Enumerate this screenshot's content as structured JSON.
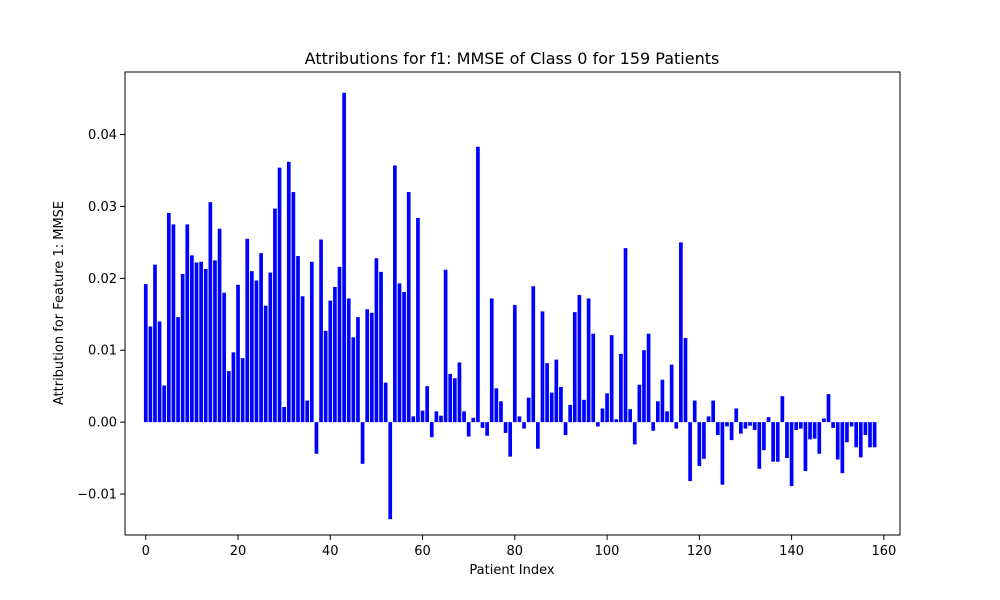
{
  "chart_data": {
    "type": "bar",
    "title": "Attributions for f1: MMSE of Class 0 for 159 Patients",
    "xlabel": "Patient Index",
    "ylabel": "Attribution for Feature 1: MMSE",
    "xlim": [
      -4.5,
      163.5
    ],
    "ylim": [
      -0.0157,
      0.0487
    ],
    "x_ticks": [
      0,
      20,
      40,
      60,
      80,
      100,
      120,
      140,
      160
    ],
    "y_ticks": [
      -0.01,
      0.0,
      0.01,
      0.02,
      0.03,
      0.04
    ],
    "y_tick_labels": [
      "−0.01",
      "0.00",
      "0.01",
      "0.02",
      "0.03",
      "0.04"
    ],
    "grid": false,
    "bar_color": "#0000ff",
    "x": [
      0,
      1,
      2,
      3,
      4,
      5,
      6,
      7,
      8,
      9,
      10,
      11,
      12,
      13,
      14,
      15,
      16,
      17,
      18,
      19,
      20,
      21,
      22,
      23,
      24,
      25,
      26,
      27,
      28,
      29,
      30,
      31,
      32,
      33,
      34,
      35,
      36,
      37,
      38,
      39,
      40,
      41,
      42,
      43,
      44,
      45,
      46,
      47,
      48,
      49,
      50,
      51,
      52,
      53,
      54,
      55,
      56,
      57,
      58,
      59,
      60,
      61,
      62,
      63,
      64,
      65,
      66,
      67,
      68,
      69,
      70,
      71,
      72,
      73,
      74,
      75,
      76,
      77,
      78,
      79,
      80,
      81,
      82,
      83,
      84,
      85,
      86,
      87,
      88,
      89,
      90,
      91,
      92,
      93,
      94,
      95,
      96,
      97,
      98,
      99,
      100,
      101,
      102,
      103,
      104,
      105,
      106,
      107,
      108,
      109,
      110,
      111,
      112,
      113,
      114,
      115,
      116,
      117,
      118,
      119,
      120,
      121,
      122,
      123,
      124,
      125,
      126,
      127,
      128,
      129,
      130,
      131,
      132,
      133,
      134,
      135,
      136,
      137,
      138,
      139,
      140,
      141,
      142,
      143,
      144,
      145,
      146,
      147,
      148,
      149,
      150,
      151,
      152,
      153,
      154,
      155,
      156,
      157,
      158
    ],
    "values": [
      0.0192,
      0.0133,
      0.0219,
      0.014,
      0.0051,
      0.0291,
      0.0275,
      0.0146,
      0.0206,
      0.0275,
      0.0232,
      0.0222,
      0.0223,
      0.0213,
      0.0306,
      0.0225,
      0.0269,
      0.018,
      0.0071,
      0.0097,
      0.0191,
      0.0089,
      0.0255,
      0.021,
      0.0197,
      0.0235,
      0.0162,
      0.0208,
      0.0297,
      0.0354,
      0.0021,
      0.0362,
      0.032,
      0.0231,
      0.0175,
      0.003,
      0.0223,
      -0.0044,
      0.0254,
      0.0127,
      0.0169,
      0.0188,
      0.0216,
      0.0458,
      0.0172,
      0.0118,
      0.0146,
      -0.0058,
      0.0157,
      0.0152,
      0.0228,
      0.0209,
      0.0055,
      -0.0135,
      0.0357,
      0.0193,
      0.0181,
      0.032,
      0.0008,
      0.0284,
      0.0016,
      0.005,
      -0.0021,
      0.0015,
      0.0009,
      0.0212,
      0.0067,
      0.0061,
      0.0083,
      0.0015,
      -0.002,
      0.0006,
      0.0383,
      -0.0008,
      -0.0019,
      0.0172,
      0.0047,
      0.0029,
      -0.0015,
      -0.0048,
      0.0163,
      0.0008,
      -0.0009,
      0.0034,
      0.0189,
      -0.0037,
      0.0154,
      0.0082,
      0.0041,
      0.0087,
      0.0049,
      -0.0018,
      0.0024,
      0.0153,
      0.0177,
      0.0031,
      0.0172,
      0.0123,
      -0.0006,
      0.0019,
      0.004,
      0.0121,
      0.0004,
      0.0095,
      0.0242,
      0.0018,
      -0.0031,
      0.0052,
      0.01,
      0.0123,
      -0.0012,
      0.0029,
      0.0059,
      0.0015,
      0.008,
      -0.0009,
      0.025,
      0.0117,
      -0.0082,
      0.003,
      -0.0061,
      -0.0051,
      0.0008,
      0.003,
      -0.0018,
      -0.0087,
      -0.0006,
      -0.0025,
      0.0019,
      -0.0016,
      -0.0009,
      -0.0005,
      -0.0011,
      -0.0065,
      -0.0039,
      0.0007,
      -0.0055,
      -0.0055,
      0.0036,
      -0.005,
      -0.0089,
      -0.0011,
      -0.0009,
      -0.0068,
      -0.0024,
      -0.0023,
      -0.0044,
      0.0005,
      0.0039,
      -0.0008,
      -0.0052,
      -0.0071,
      -0.0028,
      -0.0006,
      -0.0035,
      -0.0049,
      -0.0018,
      -0.0035,
      -0.0035
    ]
  }
}
